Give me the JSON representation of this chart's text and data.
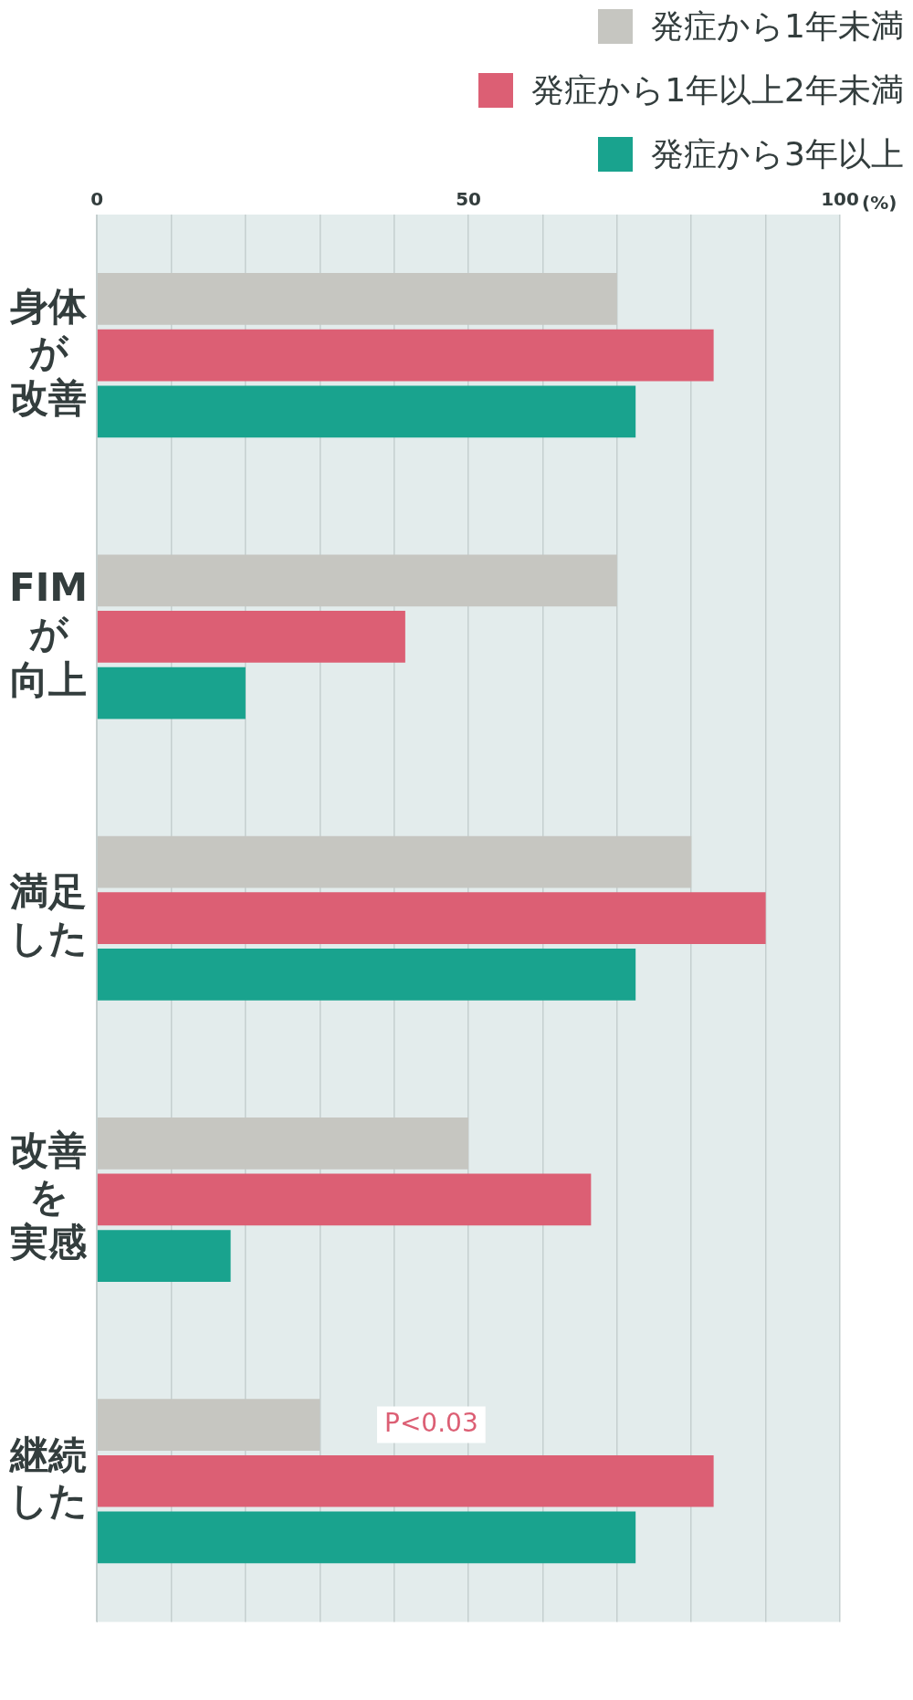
{
  "chart_data": {
    "type": "bar",
    "orientation": "horizontal",
    "xlabel": "(%)",
    "categories": [
      "身体が改善",
      "FIMが向上",
      "満足した",
      "改善を実感",
      "継続した"
    ],
    "series": [
      {
        "name": "発症から1年未満",
        "color": "#c6c6c1",
        "values": [
          70,
          70,
          80,
          50,
          30
        ]
      },
      {
        "name": "発症から1年以上2年未満",
        "color": "#dc5f74",
        "values": [
          83,
          41.5,
          90,
          66.5,
          83
        ]
      },
      {
        "name": "発症から3年以上",
        "color": "#19a38e",
        "values": [
          72.5,
          20,
          72.5,
          18,
          72.5
        ]
      }
    ],
    "xlim": [
      0,
      100
    ],
    "xticks": [
      0,
      {
        "value": 10,
        "label": null
      },
      {
        "value": 20,
        "label": null
      },
      {
        "value": 30,
        "label": null
      },
      {
        "value": 40,
        "label": null
      },
      50,
      {
        "value": 60,
        "label": null
      },
      {
        "value": 70,
        "label": null
      },
      {
        "value": 80,
        "label": null
      },
      {
        "value": 90,
        "label": null
      },
      100
    ],
    "grid": "x",
    "legend": "top right",
    "annotations": [
      "P<0.03"
    ]
  }
}
